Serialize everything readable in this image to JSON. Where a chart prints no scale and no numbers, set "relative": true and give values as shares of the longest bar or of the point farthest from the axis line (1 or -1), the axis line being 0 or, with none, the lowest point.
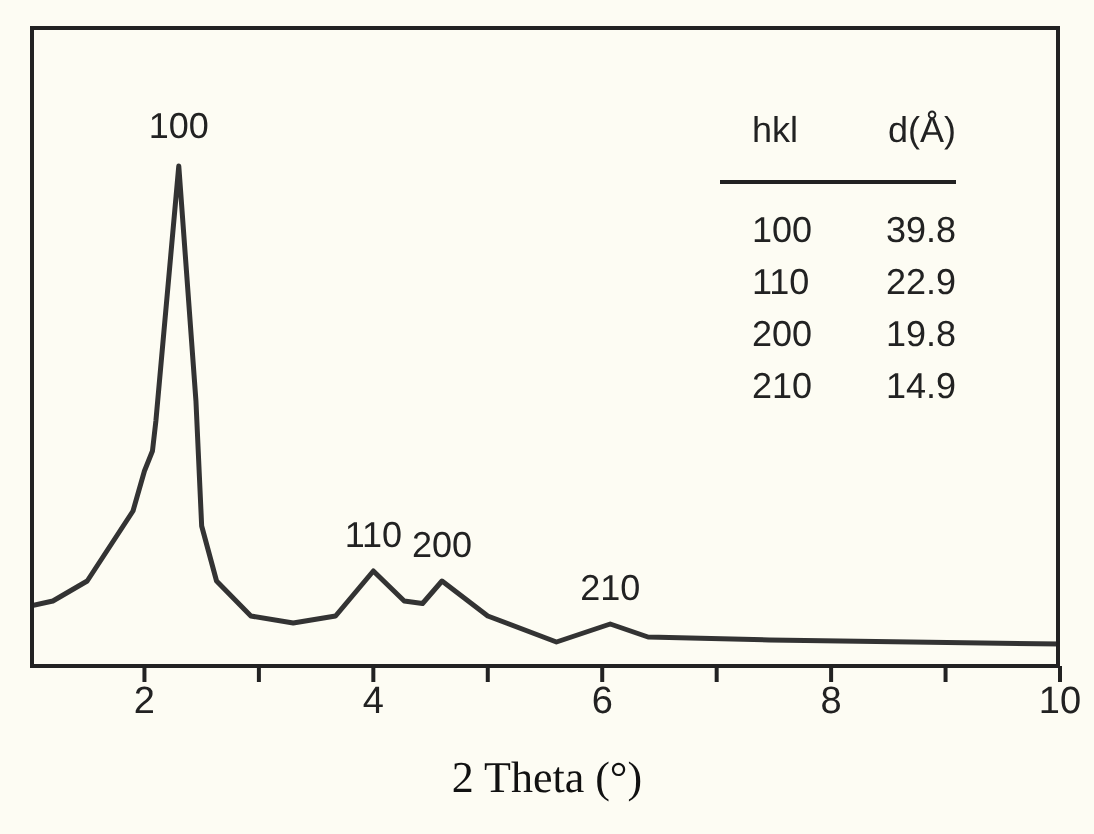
{
  "chart_data": {
    "type": "line",
    "xlabel": "2 Theta (°)",
    "relative": true,
    "color": "#333333",
    "x": [
      1.0,
      1.2,
      1.5,
      1.9,
      2.0,
      2.07,
      2.1,
      2.3,
      2.45,
      2.5,
      2.63,
      2.93,
      3.3,
      3.67,
      4.0,
      4.27,
      4.43,
      4.6,
      5.0,
      5.6,
      6.07,
      6.4,
      7.46,
      10
    ],
    "values": [
      0.12,
      0.13,
      0.17,
      0.31,
      0.39,
      0.43,
      0.49,
      1.0,
      0.53,
      0.28,
      0.17,
      0.1,
      0.086,
      0.1,
      0.19,
      0.13,
      0.125,
      0.17,
      0.1,
      0.048,
      0.084,
      0.058,
      0.052,
      0.044
    ],
    "xlim": [
      1,
      10
    ],
    "xticks": [
      2,
      {
        "value": 3,
        "label": null
      },
      4,
      {
        "value": 5,
        "label": null
      },
      6,
      {
        "value": 7,
        "label": null
      },
      8,
      {
        "value": 9,
        "label": null
      },
      10
    ],
    "marker": "none",
    "line_style": "solid",
    "grid": false,
    "legend": false,
    "annotations": [
      {
        "text": "100",
        "x": 2.3,
        "y": 1.0
      },
      {
        "text": "110",
        "x": 4.0,
        "y": 0.19
      },
      {
        "text": "200",
        "x": 4.6,
        "y": 0.17
      },
      {
        "text": "210",
        "x": 6.07,
        "y": 0.084
      },
      "hkl",
      "d(Å)",
      "100",
      "39.8",
      "110",
      "22.9",
      "200",
      "19.8",
      "210",
      "14.9"
    ]
  }
}
